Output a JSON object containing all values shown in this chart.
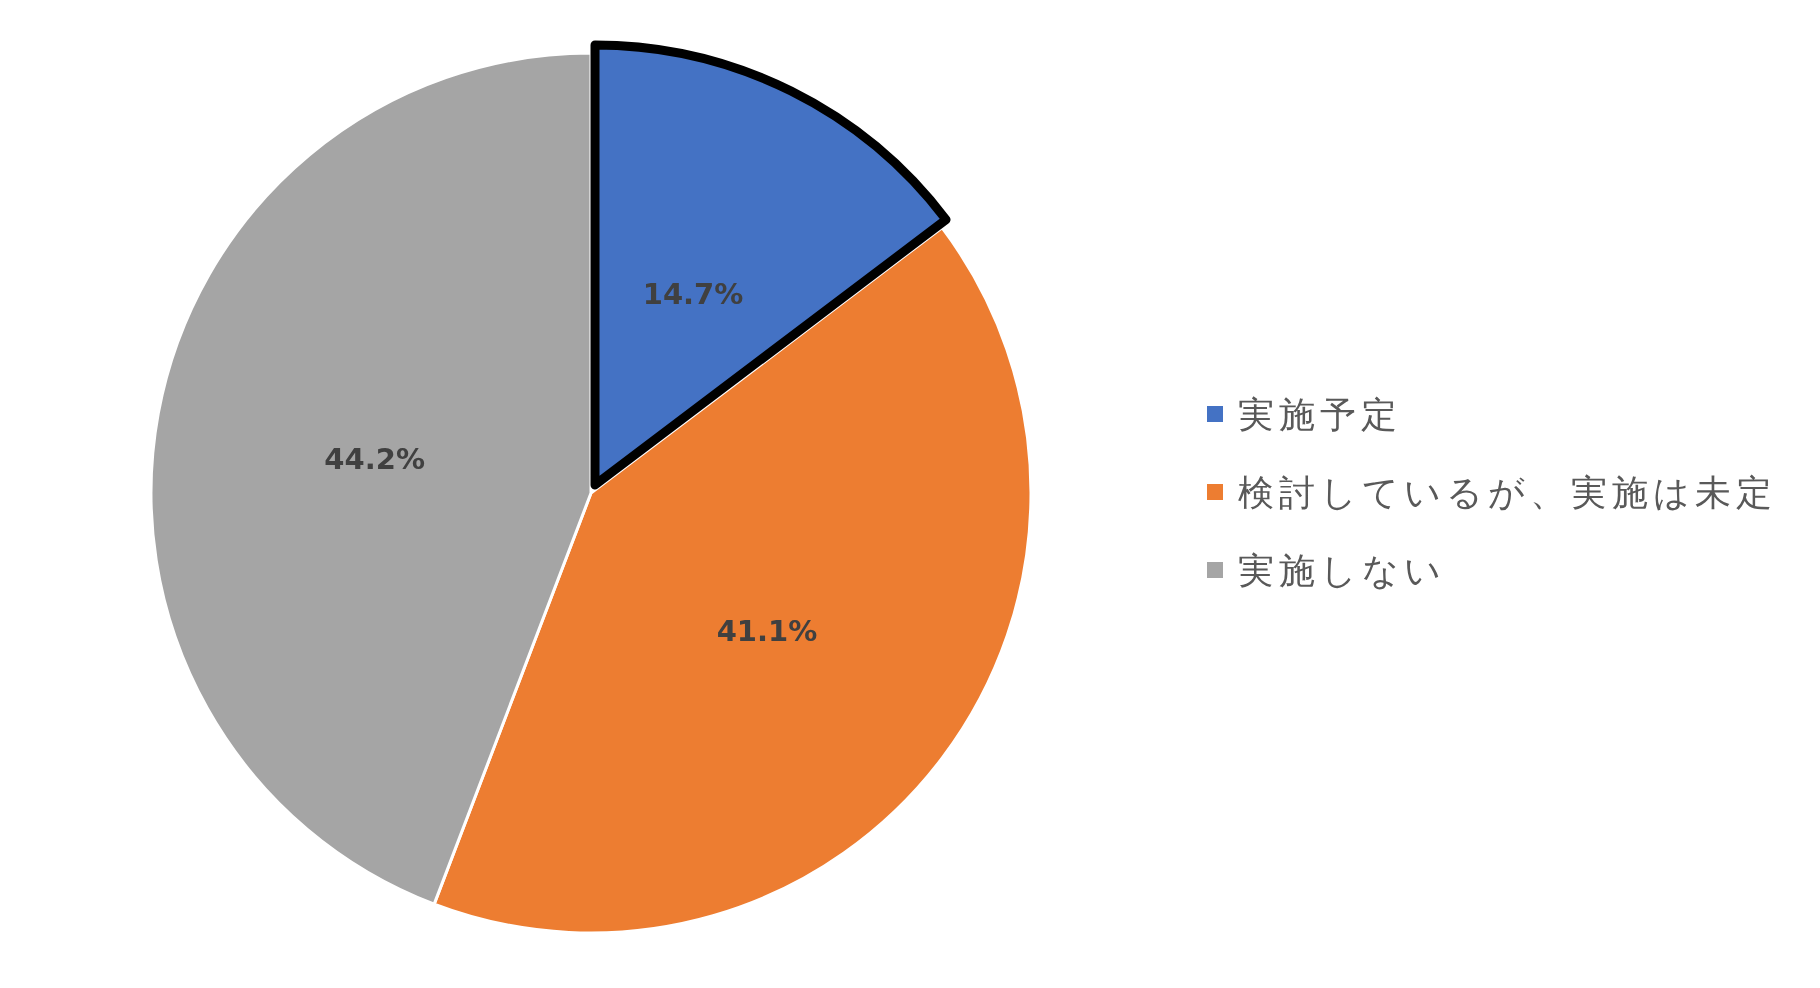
{
  "chart_data": {
    "type": "pie",
    "categories": [
      "実施予定",
      "検討しているが、実施は未定",
      "実施しない"
    ],
    "values": [
      14.7,
      41.1,
      44.2
    ],
    "colors": [
      "#4472c4",
      "#ed7d31",
      "#a5a5a5"
    ],
    "value_labels": [
      "14.7%",
      "41.1%",
      "44.2%"
    ],
    "legend": "right"
  }
}
